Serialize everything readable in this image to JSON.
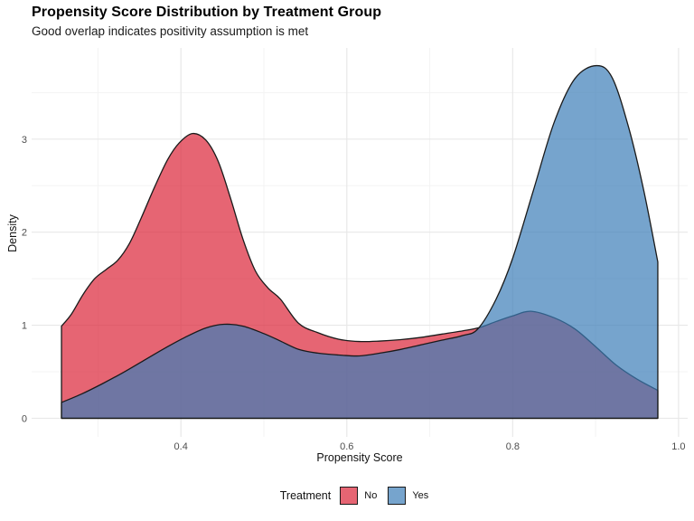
{
  "chart_data": {
    "type": "area",
    "subtype": "density",
    "title": "Propensity Score Distribution by Treatment Group",
    "subtitle": "Good overlap indicates positivity assumption is met",
    "xlabel": "Propensity Score",
    "ylabel": "Density",
    "xlim": [
      0.22,
      1.011
    ],
    "ylim": [
      -0.2,
      3.98
    ],
    "x_major_ticks": [
      0.4,
      0.6,
      0.8,
      1.0
    ],
    "x_tick_labels": [
      "0.4",
      "0.6",
      "0.8",
      "1.0"
    ],
    "x_minor_ticks": [
      0.3,
      0.5,
      0.7,
      0.9
    ],
    "y_major_ticks": [
      0,
      1,
      2,
      3
    ],
    "y_tick_labels": [
      "0",
      "1",
      "2",
      "3"
    ],
    "y_minor_ticks": [
      0.5,
      1.5,
      2.5,
      3.5
    ],
    "grid": "on",
    "colors": {
      "grid_major": "#e8e8e8",
      "grid_minor": "#f3f3f3",
      "outline": "#1a1a1a",
      "tick_text": "#4d4d4d",
      "fill_alpha": 0.7
    },
    "legend": {
      "title": "Treatment",
      "position": "bottom",
      "entries": [
        {
          "label": "No",
          "fill": "#DC2437"
        },
        {
          "label": "Yes",
          "fill": "#3C7EB8"
        }
      ]
    },
    "series": [
      {
        "name": "No",
        "fill": "#DC2437",
        "points": [
          [
            0.256,
            0.99
          ],
          [
            0.268,
            1.12
          ],
          [
            0.282,
            1.33
          ],
          [
            0.296,
            1.5
          ],
          [
            0.31,
            1.6
          ],
          [
            0.324,
            1.7
          ],
          [
            0.338,
            1.88
          ],
          [
            0.352,
            2.15
          ],
          [
            0.368,
            2.48
          ],
          [
            0.384,
            2.78
          ],
          [
            0.398,
            2.96
          ],
          [
            0.414,
            3.06
          ],
          [
            0.43,
            2.99
          ],
          [
            0.445,
            2.76
          ],
          [
            0.46,
            2.36
          ],
          [
            0.475,
            1.92
          ],
          [
            0.49,
            1.58
          ],
          [
            0.505,
            1.4
          ],
          [
            0.52,
            1.28
          ],
          [
            0.542,
            1.02
          ],
          [
            0.565,
            0.92
          ],
          [
            0.59,
            0.85
          ],
          [
            0.615,
            0.825
          ],
          [
            0.64,
            0.83
          ],
          [
            0.665,
            0.845
          ],
          [
            0.69,
            0.87
          ],
          [
            0.715,
            0.905
          ],
          [
            0.74,
            0.94
          ],
          [
            0.76,
            0.975
          ],
          [
            0.78,
            1.04
          ],
          [
            0.8,
            1.1
          ],
          [
            0.822,
            1.15
          ],
          [
            0.85,
            1.08
          ],
          [
            0.875,
            0.96
          ],
          [
            0.9,
            0.77
          ],
          [
            0.925,
            0.57
          ],
          [
            0.95,
            0.42
          ],
          [
            0.975,
            0.3
          ]
        ]
      },
      {
        "name": "Yes",
        "fill": "#3C7EB8",
        "points": [
          [
            0.256,
            0.17
          ],
          [
            0.28,
            0.26
          ],
          [
            0.305,
            0.37
          ],
          [
            0.33,
            0.49
          ],
          [
            0.355,
            0.62
          ],
          [
            0.38,
            0.75
          ],
          [
            0.405,
            0.87
          ],
          [
            0.43,
            0.97
          ],
          [
            0.452,
            1.01
          ],
          [
            0.475,
            0.99
          ],
          [
            0.5,
            0.91
          ],
          [
            0.52,
            0.83
          ],
          [
            0.542,
            0.74
          ],
          [
            0.565,
            0.7
          ],
          [
            0.59,
            0.68
          ],
          [
            0.615,
            0.67
          ],
          [
            0.64,
            0.7
          ],
          [
            0.665,
            0.74
          ],
          [
            0.69,
            0.79
          ],
          [
            0.715,
            0.84
          ],
          [
            0.74,
            0.89
          ],
          [
            0.758,
            0.96
          ],
          [
            0.78,
            1.28
          ],
          [
            0.8,
            1.72
          ],
          [
            0.825,
            2.45
          ],
          [
            0.85,
            3.18
          ],
          [
            0.875,
            3.65
          ],
          [
            0.901,
            3.79
          ],
          [
            0.92,
            3.66
          ],
          [
            0.94,
            3.12
          ],
          [
            0.958,
            2.45
          ],
          [
            0.975,
            1.68
          ]
        ]
      }
    ]
  }
}
